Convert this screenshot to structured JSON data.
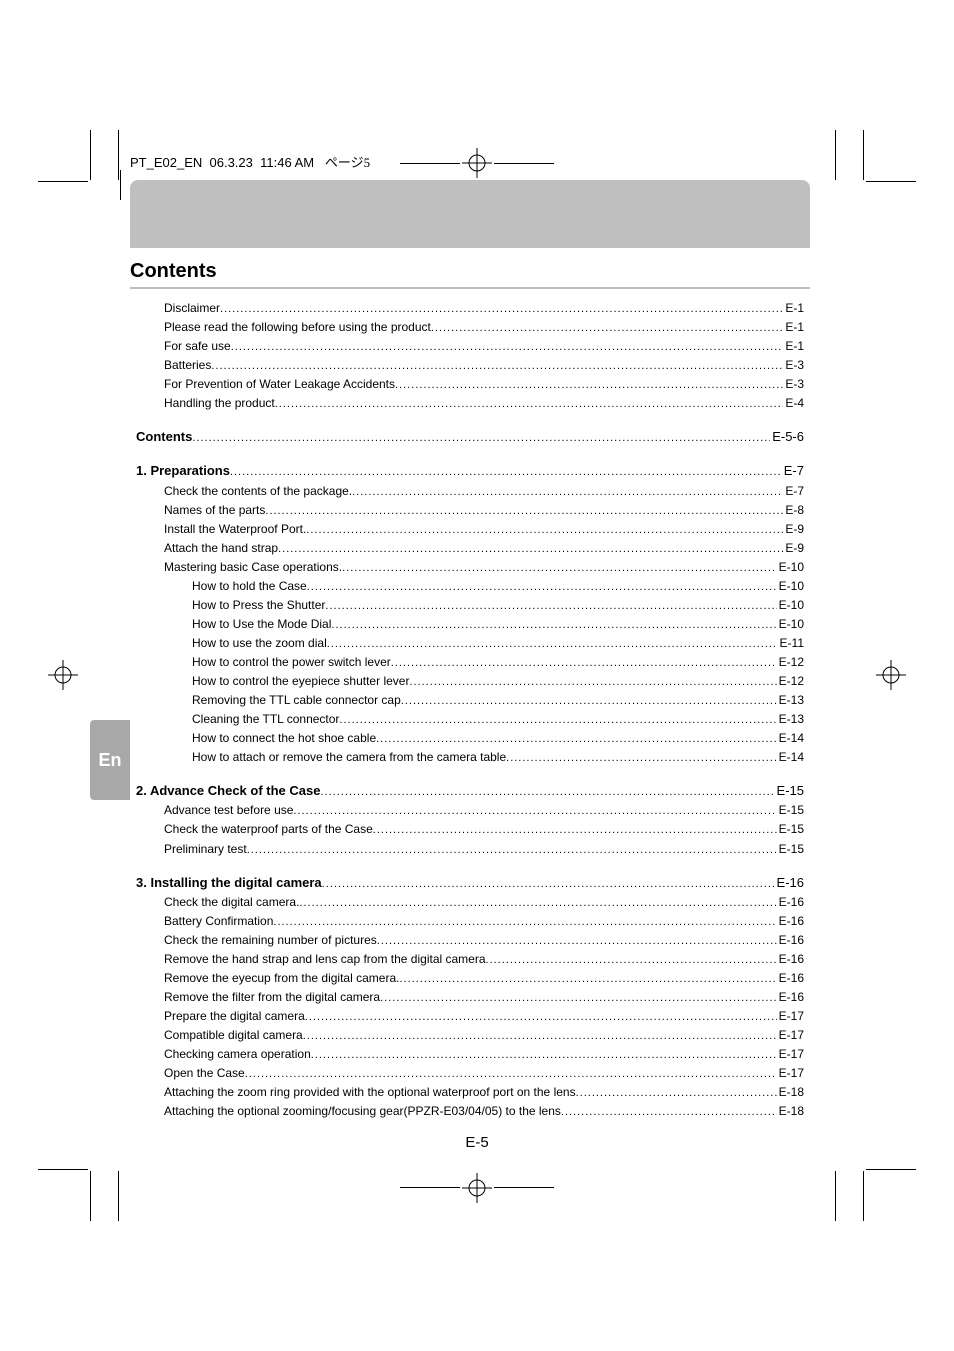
{
  "slug": {
    "file": "PT_E02_EN",
    "date": "06.3.23",
    "time": "11:46 AM",
    "page_jp": "ページ5"
  },
  "title": "Contents",
  "lang_tab": "En",
  "footer": "E-5",
  "leader_dots": "..................................................................................................................................................................................................................",
  "blocks": [
    {
      "rows": [
        {
          "indent": 1,
          "bold": false,
          "text": "Disclaimer",
          "page": "E-1"
        },
        {
          "indent": 1,
          "bold": false,
          "text": "Please read the following before using the product ",
          "page": "E-1"
        },
        {
          "indent": 1,
          "bold": false,
          "text": "For safe use ",
          "page": "E-1"
        },
        {
          "indent": 1,
          "bold": false,
          "text": "Batteries ",
          "page": "E-3"
        },
        {
          "indent": 1,
          "bold": false,
          "text": "For Prevention of Water Leakage Accidents ",
          "page": "E-3"
        },
        {
          "indent": 1,
          "bold": false,
          "text": "Handling the product",
          "page": "E-4"
        }
      ]
    },
    {
      "rows": [
        {
          "indent": 0,
          "bold": true,
          "text": "Contents ",
          "page": "E-5-6"
        }
      ]
    },
    {
      "rows": [
        {
          "indent": 0,
          "bold": true,
          "text": "1. Preparations ",
          "page": "E-7"
        },
        {
          "indent": 1,
          "bold": false,
          "text": "Check the contents of the package. ",
          "page": "E-7"
        },
        {
          "indent": 1,
          "bold": false,
          "text": "Names of the parts ",
          "page": "E-8"
        },
        {
          "indent": 1,
          "bold": false,
          "text": "Install the Waterproof Port. ",
          "page": "E-9"
        },
        {
          "indent": 1,
          "bold": false,
          "text": "Attach the hand strap",
          "page": "E-9"
        },
        {
          "indent": 1,
          "bold": false,
          "text": "Mastering basic Case operations. ",
          "page": "E-10"
        },
        {
          "indent": 2,
          "bold": false,
          "text": "How to hold the Case ",
          "page": "E-10"
        },
        {
          "indent": 2,
          "bold": false,
          "text": "How to Press the Shutter ",
          "page": "E-10"
        },
        {
          "indent": 2,
          "bold": false,
          "text": "How to Use the Mode Dial ",
          "page": "E-10"
        },
        {
          "indent": 2,
          "bold": false,
          "text": "How to use the zoom dial ",
          "page": "E-11"
        },
        {
          "indent": 2,
          "bold": false,
          "text": "How to control the power switch lever",
          "page": "E-12"
        },
        {
          "indent": 2,
          "bold": false,
          "text": "How to control the eyepiece shutter lever",
          "page": "E-12"
        },
        {
          "indent": 2,
          "bold": false,
          "text": "Removing the TTL cable connector cap ",
          "page": "E-13"
        },
        {
          "indent": 2,
          "bold": false,
          "text": "Cleaning the TTL connector ",
          "page": "E-13"
        },
        {
          "indent": 2,
          "bold": false,
          "text": "How to connect the hot shoe cable",
          "page": "E-14"
        },
        {
          "indent": 2,
          "bold": false,
          "text": "How to attach or remove the camera from the camera table ",
          "page": "E-14"
        }
      ]
    },
    {
      "rows": [
        {
          "indent": 0,
          "bold": true,
          "text": "2. Advance Check of the Case",
          "page": "E-15"
        },
        {
          "indent": 1,
          "bold": false,
          "text": "Advance test before use ",
          "page": "E-15"
        },
        {
          "indent": 1,
          "bold": false,
          "text": "Check the waterproof parts of the Case ",
          "page": "E-15"
        },
        {
          "indent": 1,
          "bold": false,
          "text": "Preliminary test ",
          "page": "E-15"
        }
      ]
    },
    {
      "rows": [
        {
          "indent": 0,
          "bold": true,
          "text": "3. Installing the digital camera ",
          "page": "E-16"
        },
        {
          "indent": 1,
          "bold": false,
          "text": "Check the digital camera. ",
          "page": "E-16"
        },
        {
          "indent": 1,
          "bold": false,
          "text": "Battery Confirmation ",
          "page": "E-16"
        },
        {
          "indent": 1,
          "bold": false,
          "text": "Check the remaining number of pictures ",
          "page": "E-16"
        },
        {
          "indent": 1,
          "bold": false,
          "text": "Remove the hand strap and lens cap from the digital camera ",
          "page": "E-16"
        },
        {
          "indent": 1,
          "bold": false,
          "text": "Remove the eyecup from the digital camera. ",
          "page": "E-16"
        },
        {
          "indent": 1,
          "bold": false,
          "text": "Remove the filter from the digital camera ",
          "page": "E-16"
        },
        {
          "indent": 1,
          "bold": false,
          "text": "Prepare the digital camera",
          "page": "E-17"
        },
        {
          "indent": 1,
          "bold": false,
          "text": "Compatible digital camera",
          "page": "E-17"
        },
        {
          "indent": 1,
          "bold": false,
          "text": "Checking camera operation ",
          "page": "E-17"
        },
        {
          "indent": 1,
          "bold": false,
          "text": "Open the Case",
          "page": "E-17"
        },
        {
          "indent": 1,
          "bold": false,
          "text": "Attaching the zoom ring provided with the optional waterproof port on the lens ",
          "page": "E-18"
        },
        {
          "indent": 1,
          "bold": false,
          "text": "Attaching the optional zooming/focusing gear(PPZR-E03/04/05) to the lens ",
          "page": "E-18"
        }
      ]
    }
  ],
  "colors": {
    "band": "#bfbfbf",
    "tab_bg": "#a8a8a8",
    "tab_fg": "#ffffff"
  }
}
